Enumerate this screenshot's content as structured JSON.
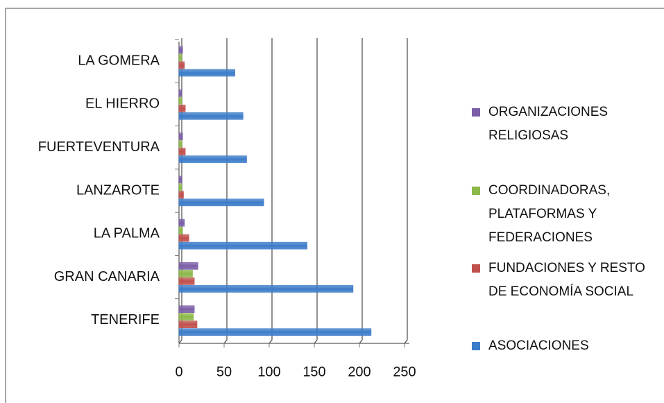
{
  "chart_data": {
    "type": "bar",
    "orientation": "horizontal",
    "categories": [
      "LA GOMERA",
      "EL HIERRO",
      "FUERTEVENTURA",
      "LANZAROTE",
      "LA PALMA",
      "GRAN CANARIA",
      "TENERIFE"
    ],
    "series": [
      {
        "name": "ORGANIZACIONES RELIGIOSAS",
        "color": "#7b5ea7",
        "values": [
          4,
          3,
          4,
          3,
          6,
          21,
          17
        ]
      },
      {
        "name": "COORDINADORAS, PLATAFORMAS Y FEDERACIONES",
        "color": "#8db84a",
        "values": [
          3,
          3,
          3,
          3,
          4,
          15,
          16
        ]
      },
      {
        "name": "FUNDACIONES Y RESTO DE ECONOMÍA SOCIAL",
        "color": "#c0504d",
        "values": [
          6,
          7,
          7,
          5,
          11,
          17,
          20
        ]
      },
      {
        "name": "ASOCIACIONES",
        "color": "#3d7cc9",
        "values": [
          62,
          71,
          75,
          94,
          142,
          193,
          213
        ]
      }
    ],
    "xlim": [
      0,
      250
    ],
    "xticks": [
      0,
      50,
      100,
      150,
      200,
      250
    ],
    "grid": true,
    "legend": "right"
  }
}
